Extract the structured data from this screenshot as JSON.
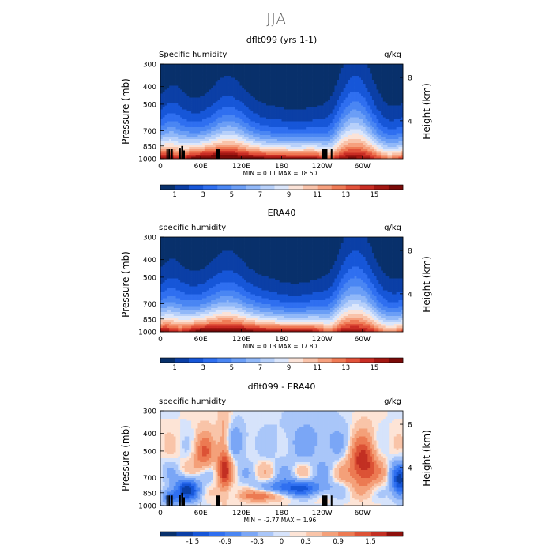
{
  "page": {
    "title": "JJA"
  },
  "chart_data": [
    {
      "type": "heatmap",
      "title": "dflt099 (yrs 1-1)",
      "variable_label": "Specific humidity",
      "units": "g/kg",
      "ylabel": "Pressure (mb)",
      "y2label": "Height (km)",
      "xticks": [
        "0",
        "60E",
        "120E",
        "180",
        "120W",
        "60W"
      ],
      "yticks": [
        "300",
        "400",
        "500",
        "700",
        "850",
        "1000"
      ],
      "y2ticks": [
        "8",
        "4"
      ],
      "stats": "MIN =    0.11   MAX =   18.50",
      "colorbar": {
        "labels": [
          "1",
          "3",
          "5",
          "7",
          "9",
          "11",
          "13",
          "15"
        ],
        "colors": [
          "#08306b",
          "#0b3fa6",
          "#1656d8",
          "#2f6ff0",
          "#4a86f3",
          "#6b9ef6",
          "#91b8f8",
          "#b7d0fa",
          "#dbe6fb",
          "#fbe3d8",
          "#f9c3aa",
          "#f6a07e",
          "#ef7a55",
          "#e2523a",
          "#c92d24",
          "#a31712",
          "#7a0a08"
        ]
      },
      "field": "specific_humidity",
      "terrain": [
        [
          9,
          10
        ],
        [
          12,
          14
        ],
        [
          16,
          16
        ],
        [
          28,
          30
        ],
        [
          31,
          34
        ],
        [
          34,
          32
        ],
        [
          83,
          88
        ],
        [
          240,
          248
        ],
        [
          253,
          255
        ]
      ]
    },
    {
      "type": "heatmap",
      "title": "ERA40",
      "variable_label": "specific humidity",
      "units": "g/kg",
      "ylabel": "Pressure (mb)",
      "y2label": "Height (km)",
      "xticks": [
        "0",
        "60E",
        "120E",
        "180",
        "120W",
        "60W"
      ],
      "yticks": [
        "300",
        "400",
        "500",
        "700",
        "850",
        "1000"
      ],
      "y2ticks": [
        "8",
        "4"
      ],
      "stats": "MIN =    0.13   MAX =   17.80",
      "colorbar": {
        "labels": [
          "1",
          "3",
          "5",
          "7",
          "9",
          "11",
          "13",
          "15"
        ],
        "colors": [
          "#08306b",
          "#0b3fa6",
          "#1656d8",
          "#2f6ff0",
          "#4a86f3",
          "#6b9ef6",
          "#91b8f8",
          "#b7d0fa",
          "#dbe6fb",
          "#fbe3d8",
          "#f9c3aa",
          "#f6a07e",
          "#ef7a55",
          "#e2523a",
          "#c92d24",
          "#a31712",
          "#7a0a08"
        ]
      },
      "field": "specific_humidity_era",
      "terrain": []
    },
    {
      "type": "heatmap",
      "title": "dflt099 - ERA40",
      "variable_label": "specific humidity",
      "units": "g/kg",
      "ylabel": "Pressure (mb)",
      "y2label": "Height (km)",
      "xticks": [
        "0",
        "60E",
        "120E",
        "180",
        "120W",
        "60W"
      ],
      "yticks": [
        "300",
        "400",
        "500",
        "700",
        "850",
        "1000"
      ],
      "y2ticks": [
        "8",
        "4"
      ],
      "stats": "MIN =   -2.77   MAX =    1.96",
      "colorbar": {
        "labels": [
          "-1.5",
          "-0.9",
          "-0.3",
          "0",
          "0.3",
          "0.9",
          "1.5"
        ],
        "colors": [
          "#08306b",
          "#0b3fa6",
          "#1656d8",
          "#2f6ff0",
          "#4a86f3",
          "#7aa6f6",
          "#a9c6f9",
          "#d6e3fb",
          "#fde4d6",
          "#f9c4a8",
          "#f4a079",
          "#ec7a52",
          "#dc5235",
          "#c22f22",
          "#8e100c"
        ]
      },
      "field": "difference",
      "terrain": [
        [
          9,
          10
        ],
        [
          12,
          14
        ],
        [
          16,
          16
        ],
        [
          28,
          30
        ],
        [
          31,
          34
        ],
        [
          34,
          32
        ],
        [
          83,
          88
        ],
        [
          240,
          248
        ],
        [
          253,
          255
        ]
      ]
    }
  ]
}
